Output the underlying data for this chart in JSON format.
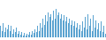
{
  "values": [
    3.5,
    2.0,
    4.5,
    1.5,
    3.0,
    2.5,
    4.0,
    2.0,
    3.5,
    1.0,
    2.5,
    1.5,
    3.0,
    1.0,
    2.0,
    0.8,
    1.5,
    0.5,
    1.2,
    0.4,
    1.0,
    0.6,
    1.5,
    0.8,
    2.0,
    1.2,
    2.5,
    1.5,
    3.5,
    2.0,
    4.5,
    3.0,
    6.0,
    4.0,
    7.0,
    5.0,
    8.0,
    6.5,
    7.5,
    5.5,
    8.5,
    6.0,
    9.0,
    7.0,
    8.0,
    6.0,
    7.5,
    5.5,
    7.0,
    5.0,
    6.5,
    4.5,
    6.0,
    4.0,
    5.5,
    3.5,
    5.0,
    3.0,
    4.5,
    2.5,
    4.0,
    2.0,
    5.0,
    3.0,
    6.5,
    2.5,
    7.5,
    3.5,
    6.0,
    2.0,
    7.0,
    3.0,
    5.5,
    2.5,
    4.5,
    2.0,
    5.0,
    1.5,
    3.5,
    1.0
  ],
  "bar_color": "#5ba3d0",
  "background_color": "#ffffff",
  "ylim_min": -1.0,
  "ylim_max": 12.0
}
